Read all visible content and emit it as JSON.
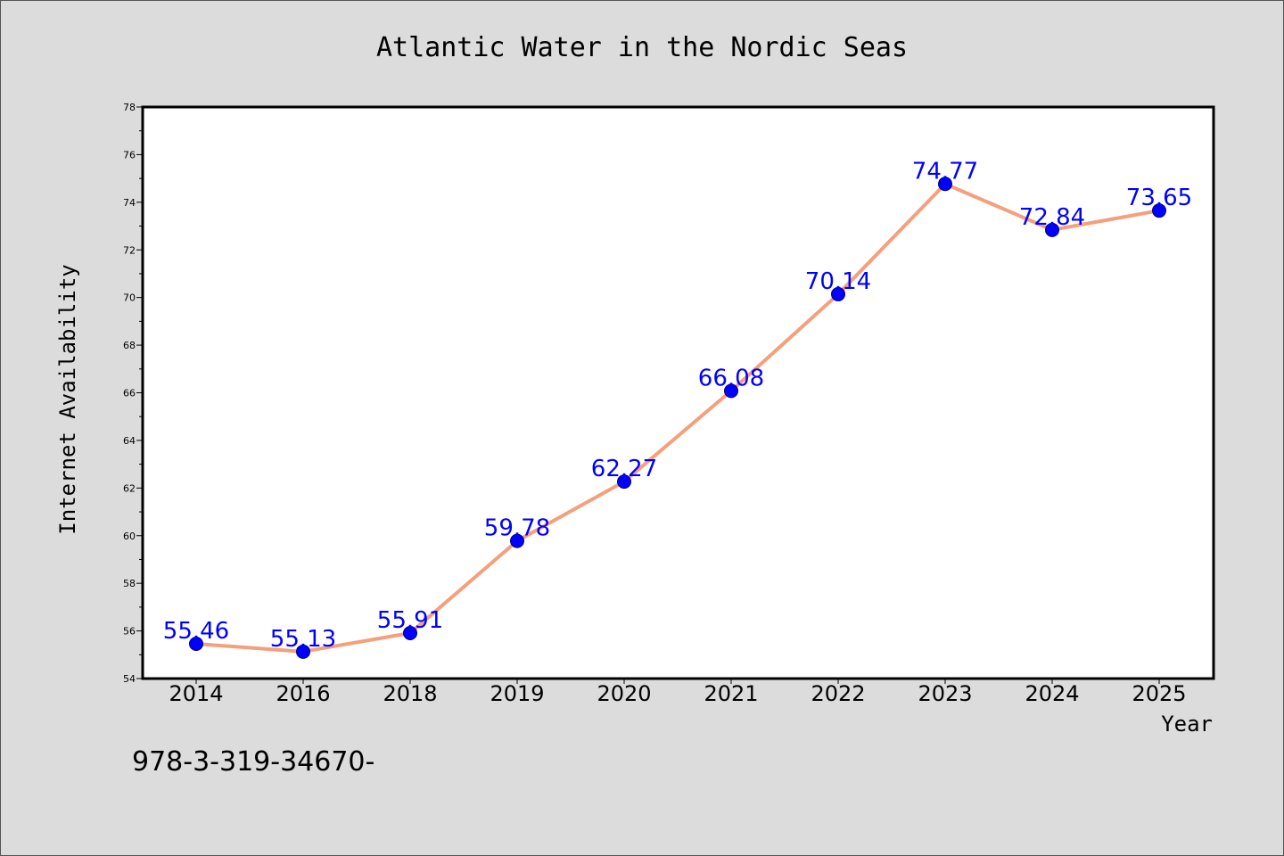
{
  "chart_data": {
    "type": "line",
    "title": "Atlantic Water in the Nordic Seas",
    "xlabel": "Year",
    "ylabel": "Internet Availability",
    "categories": [
      "2014",
      "2016",
      "2018",
      "2019",
      "2020",
      "2021",
      "2022",
      "2023",
      "2024",
      "2025"
    ],
    "series": [
      {
        "values": [
          55.46,
          55.13,
          55.91,
          59.78,
          62.27,
          66.08,
          70.14,
          74.77,
          72.84,
          73.65
        ]
      }
    ],
    "data_labels": [
      "55.46",
      "55.13",
      "55.91",
      "59.78",
      "62.27",
      "66.08",
      "70.14",
      "74.77",
      "72.84",
      "73.65"
    ],
    "ylim": [
      54,
      78
    ],
    "yticks": [
      54,
      56,
      58,
      60,
      62,
      64,
      66,
      68,
      70,
      72,
      74,
      76,
      78
    ],
    "grid": false,
    "colors": {
      "line": "#f4a07c",
      "marker": "#0000ff",
      "label": "#0000ff",
      "background": "#dcdcdc",
      "plot_area": "#ffffff"
    }
  },
  "footnote": "978-3-319-34670-"
}
